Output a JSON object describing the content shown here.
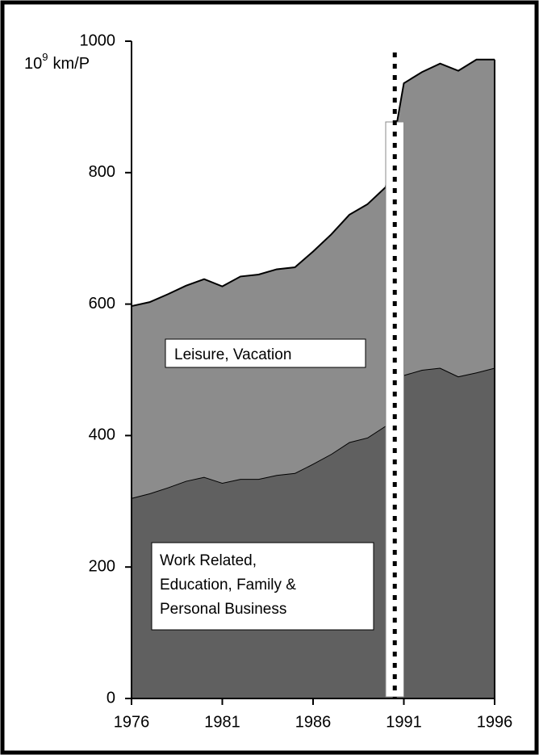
{
  "chart_data": {
    "type": "stacked_area",
    "y_label": {
      "base": "10",
      "exp": "9",
      "unit": "km/P"
    },
    "x": [
      1976,
      1977,
      1978,
      1979,
      1980,
      1981,
      1982,
      1983,
      1984,
      1985,
      1986,
      1987,
      1988,
      1989,
      1990,
      1991,
      1992,
      1993,
      1994,
      1995,
      1996
    ],
    "series": [
      {
        "name": "Work Related, Education, Family & Personal Business",
        "color": "#606060",
        "values": [
          305,
          312,
          321,
          331,
          337,
          328,
          334,
          334,
          340,
          343,
          357,
          372,
          390,
          397,
          415,
          492,
          500,
          503,
          490,
          496,
          503
        ]
      },
      {
        "name": "Leisure, Vacation",
        "color": "#8c8c8c",
        "values": [
          292,
          291,
          294,
          297,
          301,
          299,
          308,
          311,
          313,
          313,
          323,
          334,
          346,
          355,
          363,
          444,
          453,
          463,
          465,
          476,
          469
        ]
      }
    ],
    "annotations": {
      "leisure": "Leisure,  Vacation",
      "work": [
        "Work Related,",
        "Education, Family &",
        "Personal Business"
      ]
    },
    "gap": [
      1990,
      1991
    ],
    "xlim": [
      1976,
      1996
    ],
    "xticks": [
      1976,
      1981,
      1986,
      1991,
      1996
    ],
    "ylim": [
      0,
      1000
    ],
    "yticks": [
      0,
      200,
      400,
      600,
      800,
      1000
    ]
  }
}
